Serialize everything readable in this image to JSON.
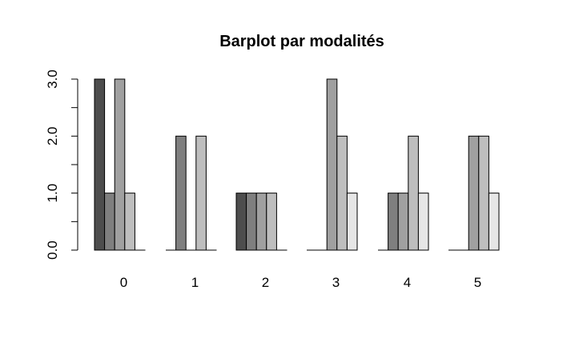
{
  "chart_data": {
    "type": "bar",
    "title": "Barplot par modalités",
    "xlabel": "",
    "ylabel": "",
    "categories": [
      "0",
      "1",
      "2",
      "3",
      "4",
      "5"
    ],
    "series": [
      {
        "values": [
          3,
          0,
          1,
          0,
          0,
          0
        ],
        "color": "#4d4d4d"
      },
      {
        "values": [
          1,
          2,
          1,
          0,
          1,
          0
        ],
        "color": "#7f7f7f"
      },
      {
        "values": [
          3,
          0,
          1,
          3,
          1,
          2
        ],
        "color": "#a0a0a0"
      },
      {
        "values": [
          1,
          2,
          1,
          2,
          2,
          2
        ],
        "color": "#bebebe"
      },
      {
        "values": [
          0,
          0,
          0,
          1,
          1,
          1
        ],
        "color": "#e6e6e6"
      }
    ],
    "ylim": [
      0,
      3
    ],
    "yticks": [
      0,
      0.5,
      1,
      1.5,
      2,
      2.5,
      3
    ],
    "ytick_labels": [
      {
        "value": 0,
        "label": "0.0"
      },
      {
        "value": 1,
        "label": "1.0"
      },
      {
        "value": 2,
        "label": "2.0"
      },
      {
        "value": 3,
        "label": "3.0"
      }
    ],
    "grid": false,
    "legend": "none"
  }
}
